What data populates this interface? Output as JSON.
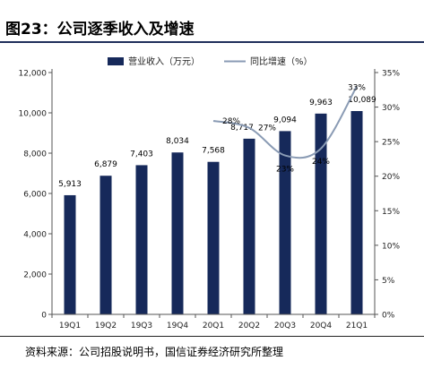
{
  "figure": {
    "title": "图23：公司逐季收入及增速",
    "source": "资料来源：公司招股说明书，国信证券经济研究所整理"
  },
  "chart_data": {
    "type": "bar+line",
    "categories": [
      "19Q1",
      "19Q2",
      "19Q3",
      "19Q4",
      "20Q1",
      "20Q2",
      "20Q3",
      "20Q4",
      "21Q1"
    ],
    "series": [
      {
        "name": "营业收入（万元）",
        "type": "bar",
        "axis": "left",
        "values": [
          5913,
          6879,
          7403,
          8034,
          7568,
          8717,
          9094,
          9963,
          10089
        ],
        "labels": [
          "5,913",
          "6,879",
          "7,403",
          "8,034",
          "7,568",
          "8,717",
          "9,094",
          "9,963",
          "10,089"
        ],
        "color": "#16295a"
      },
      {
        "name": "同比增速（%）",
        "type": "line",
        "axis": "right",
        "values": [
          null,
          null,
          null,
          null,
          28,
          27,
          23,
          24,
          33
        ],
        "labels": [
          "",
          "",
          "",
          "",
          "28%",
          "27%",
          "23%",
          "24%",
          "33%"
        ],
        "color": "#8a9bb4"
      }
    ],
    "y_left": {
      "ylim": [
        0,
        12000
      ],
      "ticks": [
        0,
        2000,
        4000,
        6000,
        8000,
        10000,
        12000
      ],
      "tick_labels": [
        "0",
        "2,000",
        "4,000",
        "6,000",
        "8,000",
        "10,000",
        "12,000"
      ]
    },
    "y_right": {
      "ylim": [
        0,
        35
      ],
      "ticks": [
        0,
        5,
        10,
        15,
        20,
        25,
        30,
        35
      ],
      "tick_labels": [
        "0%",
        "5%",
        "10%",
        "15%",
        "20%",
        "25%",
        "30%",
        "35%"
      ]
    },
    "grid": false,
    "legend_position": "top-center"
  }
}
